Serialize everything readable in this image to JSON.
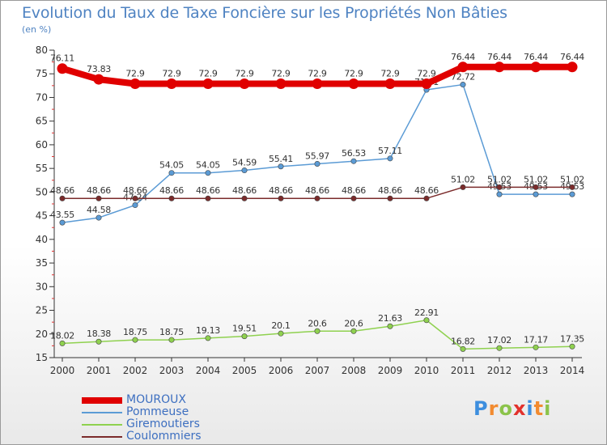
{
  "title": "Evolution du Taux de Taxe Foncière sur les Propriétés Non Bâties",
  "unit_label": "(en %)",
  "logo": {
    "text": "Proxiti",
    "letters": [
      "P",
      "r",
      "o",
      "x",
      "i",
      "t",
      "i"
    ],
    "letter_colors": [
      "#3d8ede",
      "#f28b30",
      "#8bc34a",
      "#e2312c",
      "#3d8ede",
      "#f28b30",
      "#8bc34a"
    ]
  },
  "chart_data": {
    "type": "line",
    "title": "Evolution du Taux de Taxe Foncière sur les Propriétés Non Bâties",
    "ylabel": "(en %)",
    "xlabel": "",
    "ylim": [
      15,
      80
    ],
    "yticks": [
      15,
      20,
      25,
      30,
      35,
      40,
      45,
      50,
      55,
      60,
      65,
      70,
      75,
      80
    ],
    "grid": false,
    "legend_position": "bottom-left",
    "categories": [
      "2000",
      "2001",
      "2002",
      "2003",
      "2004",
      "2005",
      "2006",
      "2007",
      "2008",
      "2009",
      "2010",
      "2011",
      "2012",
      "2013",
      "2014"
    ],
    "series": [
      {
        "name": "MOUROUX",
        "color": "#e00000",
        "emphasis": true,
        "values": [
          76.11,
          73.83,
          72.9,
          72.9,
          72.9,
          72.9,
          72.9,
          72.9,
          72.9,
          72.9,
          72.9,
          76.44,
          76.44,
          76.44,
          76.44
        ],
        "labels": [
          "76.11",
          "73.83",
          "72.9",
          "72.9",
          "72.9",
          "72.9",
          "72.9",
          "72.9",
          "72.9",
          "72.9",
          "72.9",
          "76.44",
          "76.44",
          "76.44",
          "76.44"
        ]
      },
      {
        "name": "Pommeuse",
        "color": "#5b9bd5",
        "emphasis": false,
        "values": [
          43.55,
          44.58,
          47.24,
          54.05,
          54.05,
          54.59,
          55.41,
          55.97,
          56.53,
          57.11,
          71.61,
          72.72,
          49.53,
          49.53,
          49.53
        ],
        "labels": [
          "43.55",
          "44.58",
          "47.24",
          "54.05",
          "54.05",
          "54.59",
          "55.41",
          "55.97",
          "56.53",
          "57.11",
          "71.61",
          "72.72",
          "49.53",
          "49.53",
          "49.53"
        ]
      },
      {
        "name": "Giremoutiers",
        "color": "#8fd14f",
        "emphasis": false,
        "values": [
          18.02,
          18.38,
          18.75,
          18.75,
          19.13,
          19.51,
          20.1,
          20.6,
          20.6,
          21.63,
          22.91,
          16.82,
          17.02,
          17.17,
          17.35
        ],
        "labels": [
          "18.02",
          "18.38",
          "18.75",
          "18.75",
          "19.13",
          "19.51",
          "20.1",
          "20.6",
          "20.6",
          "21.63",
          "22.91",
          "16.82",
          "17.02",
          "17.17",
          "17.35"
        ]
      },
      {
        "name": "Coulommiers",
        "color": "#7b2b2b",
        "emphasis": false,
        "values": [
          48.66,
          48.66,
          48.66,
          48.66,
          48.66,
          48.66,
          48.66,
          48.66,
          48.66,
          48.66,
          48.66,
          51.02,
          51.02,
          51.02,
          51.02
        ],
        "labels": [
          "48.66",
          "48.66",
          "48.66",
          "48.66",
          "48.66",
          "48.66",
          "48.66",
          "48.66",
          "48.66",
          "48.66",
          "48.66",
          "51.02",
          "51.02",
          "51.02",
          "51.02"
        ]
      }
    ]
  }
}
